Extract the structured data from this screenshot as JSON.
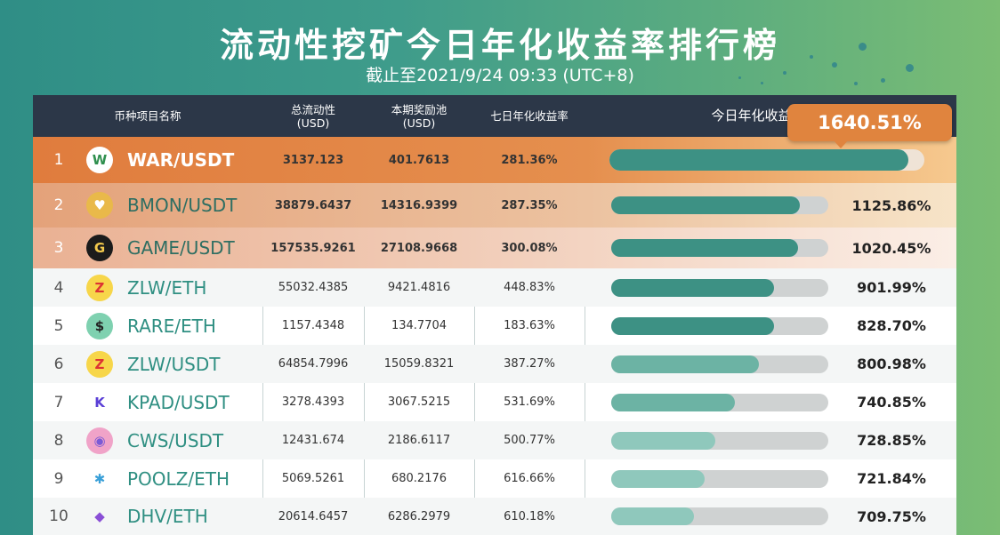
{
  "title": "流动性挖矿今日年化收益率排行榜",
  "subtitle": "截止至2021/9/24 09:33 (UTC+8)",
  "header": {
    "col_name": "币种项目名称",
    "col_liquidity": "总流动性\n(USD)",
    "col_pool": "本期奖励池\n(USD)",
    "col_apy7": "七日年化收益率",
    "col_apy_today": "今日年化收益率"
  },
  "top_apy_callout": "1640.51%",
  "rows": [
    {
      "rank": "1",
      "pair": "WAR/USDT",
      "liquidity": "3137.123",
      "pool": "401.7613",
      "apy7": "281.36%",
      "apy_today": "1640.51%",
      "bar": 0.95,
      "icon": "war-coin-icon"
    },
    {
      "rank": "2",
      "pair": "BMON/USDT",
      "liquidity": "38879.6437",
      "pool": "14316.9399",
      "apy7": "287.35%",
      "apy_today": "1125.86%",
      "bar": 0.87,
      "icon": "bmon-coin-icon"
    },
    {
      "rank": "3",
      "pair": "GAME/USDT",
      "liquidity": "157535.9261",
      "pool": "27108.9668",
      "apy7": "300.08%",
      "apy_today": "1020.45%",
      "bar": 0.86,
      "icon": "game-coin-icon"
    },
    {
      "rank": "4",
      "pair": "ZLW/ETH",
      "liquidity": "55032.4385",
      "pool": "9421.4816",
      "apy7": "448.83%",
      "apy_today": "901.99%",
      "bar": 0.75,
      "icon": "zlw-coin-icon"
    },
    {
      "rank": "5",
      "pair": "RARE/ETH",
      "liquidity": "1157.4348",
      "pool": "134.7704",
      "apy7": "183.63%",
      "apy_today": "828.70%",
      "bar": 0.75,
      "icon": "rare-coin-icon"
    },
    {
      "rank": "6",
      "pair": "ZLW/USDT",
      "liquidity": "64854.7996",
      "pool": "15059.8321",
      "apy7": "387.27%",
      "apy_today": "800.98%",
      "bar": 0.68,
      "icon": "zlw-coin-icon"
    },
    {
      "rank": "7",
      "pair": "KPAD/USDT",
      "liquidity": "3278.4393",
      "pool": "3067.5215",
      "apy7": "531.69%",
      "apy_today": "740.85%",
      "bar": 0.57,
      "icon": "kpad-coin-icon"
    },
    {
      "rank": "8",
      "pair": "CWS/USDT",
      "liquidity": "12431.674",
      "pool": "2186.6117",
      "apy7": "500.77%",
      "apy_today": "728.85%",
      "bar": 0.48,
      "icon": "cws-coin-icon"
    },
    {
      "rank": "9",
      "pair": "POOLZ/ETH",
      "liquidity": "5069.5261",
      "pool": "680.2176",
      "apy7": "616.66%",
      "apy_today": "721.84%",
      "bar": 0.43,
      "icon": "poolz-coin-icon"
    },
    {
      "rank": "10",
      "pair": "DHV/ETH",
      "liquidity": "20614.6457",
      "pool": "6286.2979",
      "apy7": "610.18%",
      "apy_today": "709.75%",
      "bar": 0.38,
      "icon": "dhv-coin-icon"
    }
  ]
}
